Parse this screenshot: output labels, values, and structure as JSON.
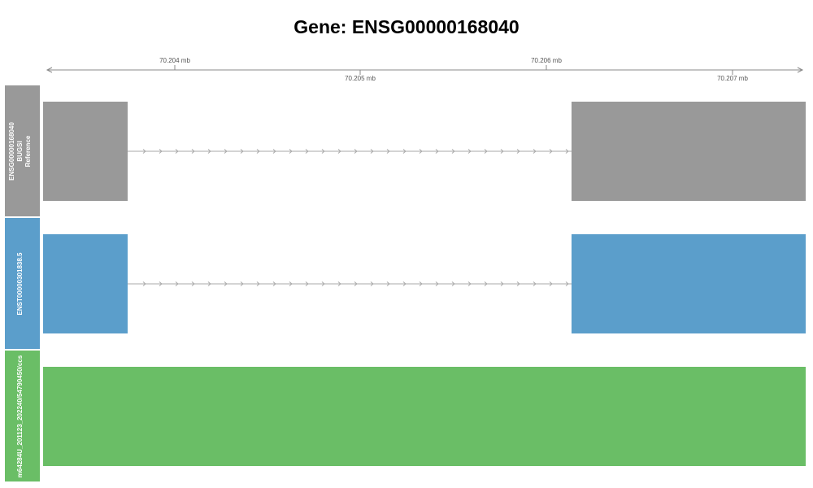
{
  "title": "Gene: ENSG00000168040",
  "axis": {
    "unit": "mb",
    "ticks_top": [
      "70.204 mb",
      "70.206 mb"
    ],
    "ticks_bottom": [
      "70.205 mb",
      "70.207 mb"
    ]
  },
  "tracks": [
    {
      "id": "reference",
      "label_lines": [
        "ENSG00000168040",
        "BUGSI",
        "Reference"
      ],
      "color": "#999999",
      "intron": true
    },
    {
      "id": "transcript",
      "label_lines": [
        "ENST00000301838.5"
      ],
      "color": "#5b9ecb",
      "intron": true
    },
    {
      "id": "read",
      "label_lines": [
        "m64284U_201123_202240/54790450/ccs"
      ],
      "color": "#6abe66",
      "intron": false
    }
  ]
}
